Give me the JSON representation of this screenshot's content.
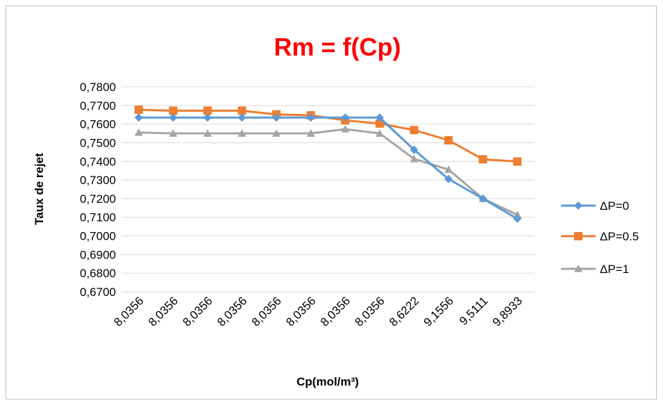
{
  "chart_data": {
    "type": "line",
    "title": "Rm = f(Cp)",
    "title_color": "#ff0000",
    "xlabel": "Cp(mol/m³)",
    "ylabel": "Taux de rejet",
    "categories": [
      "8,0356",
      "8,0356",
      "8,0356",
      "8,0356",
      "8,0356",
      "8,0356",
      "8,0356",
      "8,0356",
      "8,6222",
      "9,1556",
      "9,5111",
      "9,8933"
    ],
    "ylim": [
      0.67,
      0.78
    ],
    "ytick_step": 0.01,
    "yticks": [
      "0,6700",
      "0,6800",
      "0,6900",
      "0,7000",
      "0,7100",
      "0,7200",
      "0,7300",
      "0,7400",
      "0,7500",
      "0,7600",
      "0,7700",
      "0,7800"
    ],
    "grid": true,
    "legend": "right",
    "series": [
      {
        "name": "ΔP=0",
        "marker": "diamond",
        "color": "#5b9bd5",
        "values": [
          0.7635,
          0.7635,
          0.7635,
          0.7635,
          0.7635,
          0.7635,
          0.7635,
          0.7635,
          0.7462,
          0.7305,
          0.72,
          0.7092
        ]
      },
      {
        "name": "ΔP=0.5",
        "marker": "square",
        "color": "#ed7d31",
        "values": [
          0.7677,
          0.7672,
          0.7672,
          0.7672,
          0.7652,
          0.7647,
          0.762,
          0.7603,
          0.7568,
          0.7513,
          0.7411,
          0.7399
        ]
      },
      {
        "name": "ΔP=1",
        "marker": "triangle",
        "color": "#a5a5a5",
        "values": [
          0.7555,
          0.755,
          0.755,
          0.755,
          0.755,
          0.755,
          0.7573,
          0.755,
          0.7413,
          0.7356,
          0.72,
          0.7113
        ]
      }
    ]
  }
}
